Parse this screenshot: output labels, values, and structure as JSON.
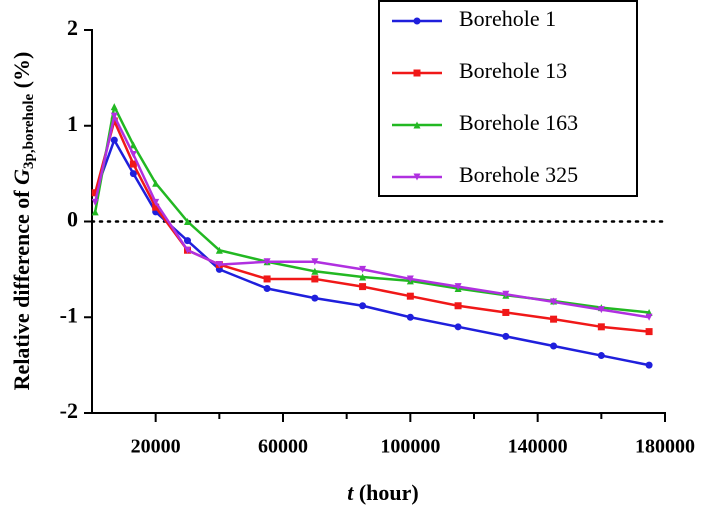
{
  "chart_data": {
    "type": "line",
    "x_label": {
      "var": "t",
      "text": "(hour)"
    },
    "y_label": {
      "text": "Relative difference of",
      "var": "G",
      "sub": "3p,borehole",
      "unit": "(%)"
    },
    "x": [
      1000,
      7000,
      13000,
      20000,
      30000,
      40000,
      55000,
      70000,
      85000,
      100000,
      115000,
      130000,
      145000,
      160000,
      175000
    ],
    "series": [
      {
        "name": "Borehole 1",
        "color": "#1f1fdc",
        "marker": "circle",
        "values": [
          0.3,
          0.85,
          0.5,
          0.1,
          -0.2,
          -0.5,
          -0.7,
          -0.8,
          -0.88,
          -1.0,
          -1.1,
          -1.2,
          -1.3,
          -1.4,
          -1.5
        ]
      },
      {
        "name": "Borehole 13",
        "color": "#f01818",
        "marker": "square",
        "values": [
          0.3,
          1.05,
          0.6,
          0.15,
          -0.3,
          -0.45,
          -0.6,
          -0.6,
          -0.68,
          -0.78,
          -0.88,
          -0.95,
          -1.02,
          -1.1,
          -1.15
        ]
      },
      {
        "name": "Borehole 163",
        "color": "#22b822",
        "marker": "triangle",
        "values": [
          0.1,
          1.2,
          0.8,
          0.4,
          0.0,
          -0.3,
          -0.42,
          -0.52,
          -0.58,
          -0.62,
          -0.7,
          -0.77,
          -0.83,
          -0.9,
          -0.95
        ]
      },
      {
        "name": "Borehole 325",
        "color": "#b030e0",
        "marker": "triangle-down",
        "values": [
          0.2,
          1.1,
          0.7,
          0.2,
          -0.3,
          -0.45,
          -0.42,
          -0.42,
          -0.5,
          -0.6,
          -0.68,
          -0.76,
          -0.84,
          -0.92,
          -1.0
        ]
      }
    ],
    "xlim": [
      0,
      180000
    ],
    "xticks": [
      20000,
      60000,
      100000,
      140000,
      180000
    ],
    "xminor_ticks": [
      40000,
      80000,
      120000,
      160000
    ],
    "ylim": [
      -2,
      2
    ],
    "yticks": [
      -2,
      -1,
      0,
      1,
      2
    ],
    "zero_line": true,
    "grid": false,
    "legend": "top-right"
  }
}
